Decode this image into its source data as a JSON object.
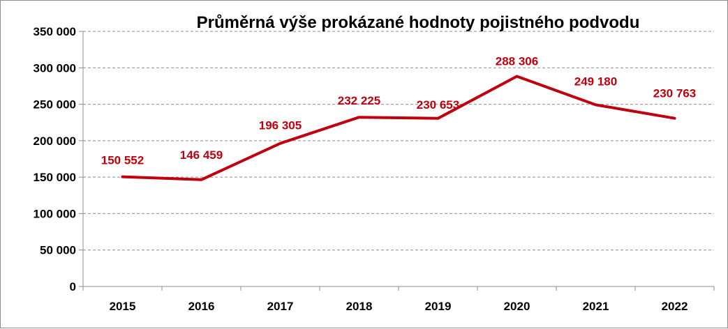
{
  "chart_data": {
    "type": "line",
    "title": "Průměrná výše prokázané hodnoty pojistného podvodu",
    "xlabel": "",
    "ylabel": "",
    "categories": [
      "2015",
      "2016",
      "2017",
      "2018",
      "2019",
      "2020",
      "2021",
      "2022"
    ],
    "series": [
      {
        "values": [
          150552,
          146459,
          196305,
          232225,
          230653,
          288306,
          249180,
          230763
        ],
        "labels": [
          "150 552",
          "146 459",
          "196 305",
          "232 225",
          "230 653",
          "288 306",
          "249 180",
          "230 763"
        ],
        "color": "#c0000c"
      }
    ],
    "ylim": [
      0,
      350000
    ],
    "yticks": [
      0,
      50000,
      100000,
      150000,
      200000,
      250000,
      300000,
      350000
    ],
    "ytick_labels": [
      "0",
      "50 000",
      "100 000",
      "150 000",
      "200 000",
      "250 000",
      "300 000",
      "350 000"
    ],
    "grid": true,
    "legend": "none",
    "colors": {
      "line": "#c0000c",
      "grid": "#8c8c8c",
      "text": "#000000"
    }
  }
}
